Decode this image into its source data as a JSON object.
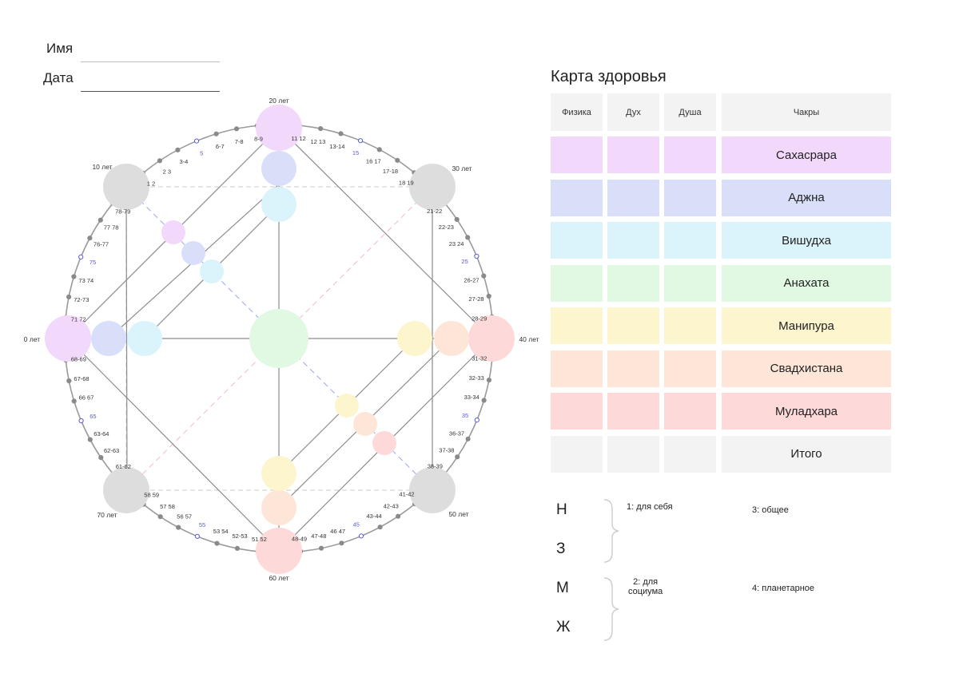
{
  "form": {
    "name_label": "Имя",
    "date_label": "Дата"
  },
  "wheel": {
    "age_labels": {
      "a0": "0 лет",
      "a10": "10 лет",
      "a20": "20 лет",
      "a30": "30 лет",
      "a40": "40 лет",
      "a50": "50 лет",
      "a60": "60 лет",
      "a70": "70 лет"
    },
    "year_labels": [
      "11 12",
      "12 13",
      "13-14",
      "15",
      "16 17",
      "17-18",
      "18 19",
      "21-22",
      "22-23",
      "23 24",
      "25",
      "26-27",
      "27-28",
      "28-29",
      "31-32",
      "32-33",
      "33-34",
      "35",
      "36-37",
      "37-38",
      "38-39",
      "41-42",
      "42-43",
      "43-44",
      "45",
      "46 47",
      "47-48",
      "48-49",
      "51 52",
      "52-53",
      "53 54",
      "55",
      "56 57",
      "57 58",
      "58 59",
      "61-62",
      "62-63",
      "63-64",
      "65",
      "66 67",
      "67-68",
      "68-69",
      "71 72",
      "72-73",
      "73 74",
      "75",
      "76-77",
      "77 78",
      "78-79",
      "1 2",
      "2 3",
      "3-4",
      "5",
      "6-7",
      "7-8",
      "8-9"
    ]
  },
  "colors": {
    "sahasrara": "#f2d8fb",
    "ajna": "#d9def9",
    "vishuddha": "#dbf3fb",
    "anahata": "#e1f9e3",
    "manipura": "#fdf5cd",
    "svadhisthana": "#fde6d7",
    "muladhara": "#fdd9d9",
    "total": "#f3f3f3",
    "node_grey": "#dddddd",
    "line": "#8d8d8d",
    "dash": "#d5d5d5",
    "dash_blue": "#9aa6ee",
    "dash_pink": "#f3b5dc",
    "accent_blue": "#5b5bd6"
  },
  "health_card": {
    "title": "Карта здоровья",
    "headers": [
      "Физика",
      "Дух",
      "Душа",
      "Чакры"
    ],
    "rows": [
      {
        "chakra": "Сахасрара",
        "color": "#f2d8fb"
      },
      {
        "chakra": "Аджна",
        "color": "#d9def9"
      },
      {
        "chakra": "Вишудха",
        "color": "#dbf3fb"
      },
      {
        "chakra": "Анахата",
        "color": "#e1f9e3"
      },
      {
        "chakra": "Манипура",
        "color": "#fdf5cd"
      },
      {
        "chakra": "Свадхистана",
        "color": "#fde6d7"
      },
      {
        "chakra": "Муладхара",
        "color": "#fdd9d9"
      },
      {
        "chakra": "Итого",
        "color": "#f3f3f3"
      }
    ]
  },
  "legend": {
    "letters": [
      "Н",
      "З",
      "М",
      "Ж"
    ],
    "self": "1: для себя",
    "society_line1": "2: для",
    "society_line2": "социума",
    "general": "3: общее",
    "planetary": "4: планетарное"
  }
}
